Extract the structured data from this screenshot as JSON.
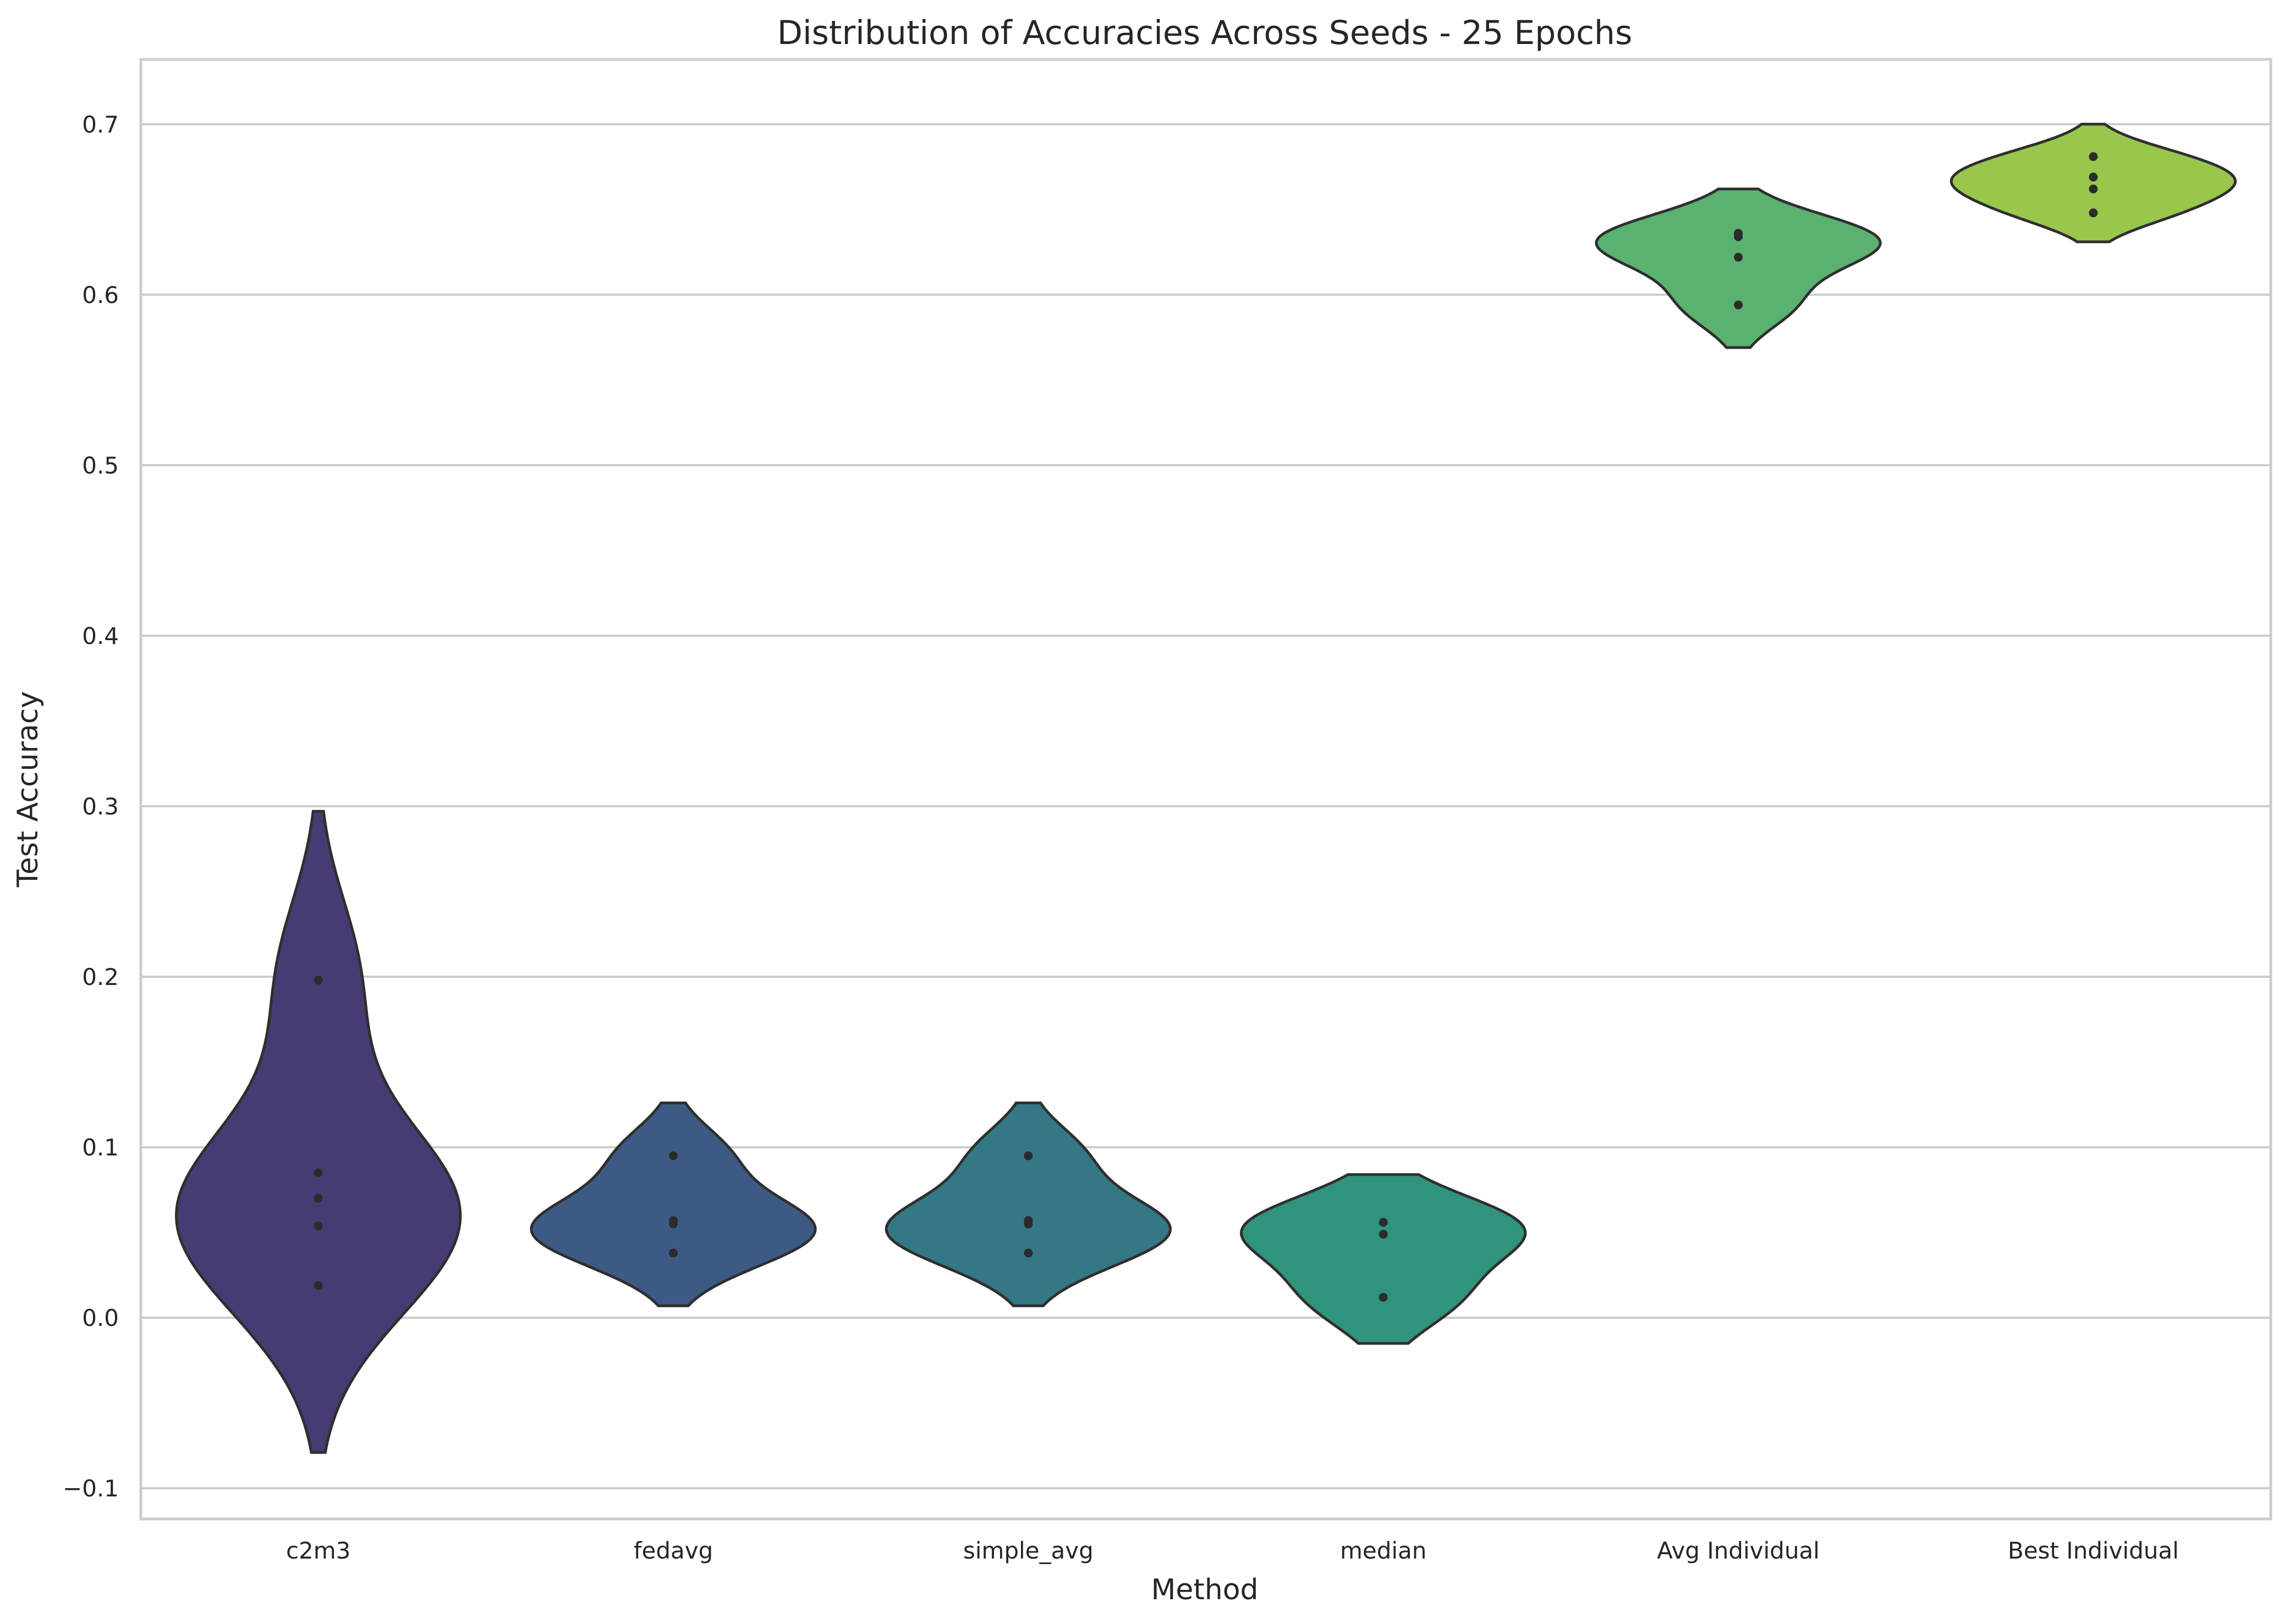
{
  "chart_data": {
    "type": "violin",
    "title": "Distribution of Accuracies Across Seeds - 25 Epochs",
    "xlabel": "Method",
    "ylabel": "Test Accuracy",
    "ylim": [
      -0.118,
      0.738
    ],
    "yticks": [
      -0.1,
      0.0,
      0.1,
      0.2,
      0.3,
      0.4,
      0.5,
      0.6,
      0.7
    ],
    "ytick_labels": [
      "−0.1",
      "0.0",
      "0.1",
      "0.2",
      "0.3",
      "0.4",
      "0.5",
      "0.6",
      "0.7"
    ],
    "grid": "horizontal",
    "inner": "points",
    "categories": [
      {
        "label": "c2m3",
        "color": "#483b73",
        "points": [
          0.198,
          0.085,
          0.07,
          0.054,
          0.019
        ],
        "range": [
          -0.079,
          0.297
        ]
      },
      {
        "label": "fedavg",
        "color": "#3d5a84",
        "points": [
          0.095,
          0.057,
          0.055,
          0.038
        ],
        "range": [
          0.007,
          0.126
        ]
      },
      {
        "label": "simple_avg",
        "color": "#347785",
        "points": [
          0.095,
          0.057,
          0.055,
          0.038
        ],
        "range": [
          0.007,
          0.126
        ]
      },
      {
        "label": "median",
        "color": "#2f937d",
        "points": [
          0.056,
          0.049,
          0.012
        ],
        "range": [
          -0.015,
          0.084
        ]
      },
      {
        "label": "Avg Individual",
        "color": "#59b26f",
        "points": [
          0.636,
          0.634,
          0.622,
          0.594
        ],
        "range": [
          0.569,
          0.662
        ]
      },
      {
        "label": "Best Individual",
        "color": "#99c64c",
        "points": [
          0.681,
          0.669,
          0.662,
          0.648
        ],
        "range": [
          0.631,
          0.7
        ]
      }
    ]
  }
}
